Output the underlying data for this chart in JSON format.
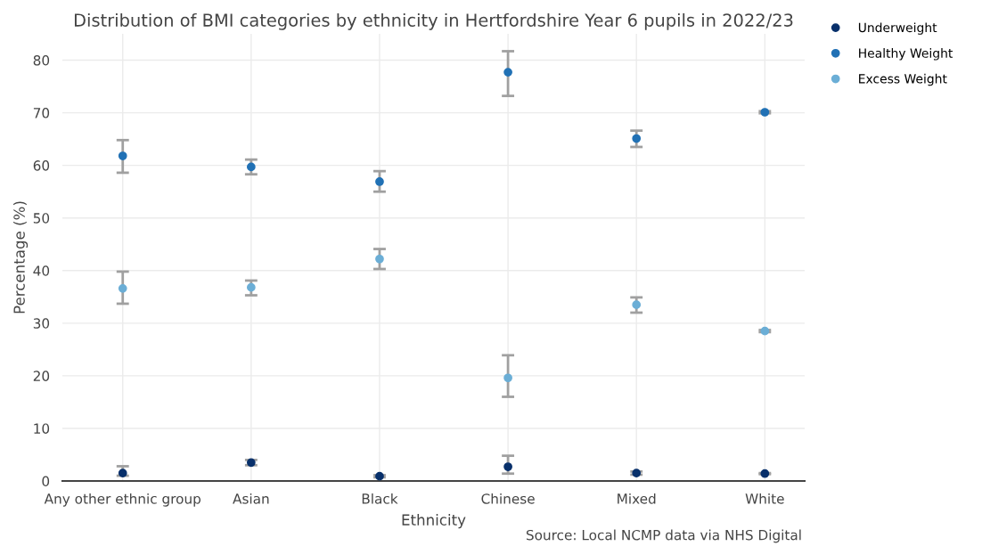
{
  "chart_data": {
    "type": "scatter",
    "title": "Distribution of BMI categories by ethnicity in Hertfordshire Year 6 pupils in 2022/23",
    "xlabel": "Ethnicity",
    "ylabel": "Percentage (%)",
    "categories": [
      "Any other ethnic group",
      "Asian",
      "Black",
      "Chinese",
      "Mixed",
      "White"
    ],
    "series": [
      {
        "name": "Underweight",
        "color": "#08306b",
        "values": [
          1.5,
          3.5,
          0.9,
          2.7,
          1.5,
          1.4
        ],
        "errors": [
          [
            1.0,
            2.8
          ],
          [
            3.0,
            4.0
          ],
          [
            0.7,
            1.1
          ],
          [
            1.4,
            4.8
          ],
          [
            1.2,
            1.8
          ],
          [
            1.3,
            1.5
          ]
        ]
      },
      {
        "name": "Healthy Weight",
        "color": "#2171b5",
        "values": [
          61.8,
          59.7,
          56.9,
          77.7,
          65.1,
          70.1
        ],
        "errors": [
          [
            58.6,
            64.8
          ],
          [
            58.3,
            61.1
          ],
          [
            55.0,
            58.9
          ],
          [
            73.2,
            81.7
          ],
          [
            63.5,
            66.6
          ],
          [
            69.9,
            70.3
          ]
        ]
      },
      {
        "name": "Excess Weight",
        "color": "#6baed6",
        "values": [
          36.6,
          36.8,
          42.2,
          19.6,
          33.5,
          28.5
        ],
        "errors": [
          [
            33.7,
            39.8
          ],
          [
            35.3,
            38.1
          ],
          [
            40.3,
            44.1
          ],
          [
            16.0,
            23.9
          ],
          [
            32.0,
            34.9
          ],
          [
            28.3,
            28.7
          ]
        ]
      }
    ],
    "ylim": [
      0,
      85
    ],
    "yticks": [
      0,
      10,
      20,
      30,
      40,
      50,
      60,
      70,
      80
    ],
    "grid": true,
    "legend": "top right",
    "marker": "circle",
    "annotations": [
      "Source: Local NCMP data via NHS Digital"
    ]
  }
}
